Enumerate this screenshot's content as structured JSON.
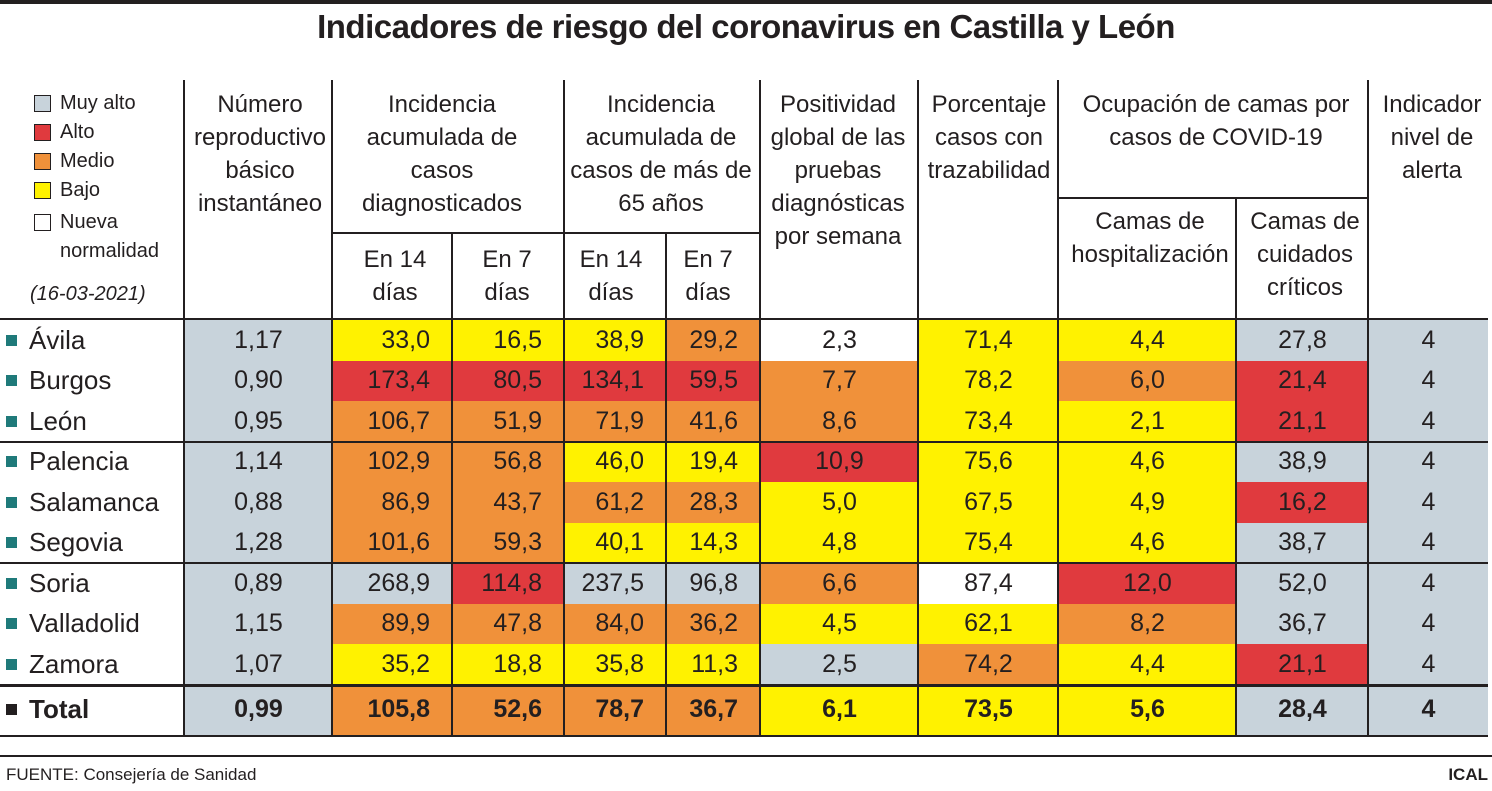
{
  "title": "Indicadores de riesgo del coronavirus en Castilla y León",
  "legend": {
    "items": [
      {
        "label": "Muy alto",
        "color": "#c8d3db"
      },
      {
        "label": "Alto",
        "color": "#e03a3e"
      },
      {
        "label": "Medio",
        "color": "#f0913a"
      },
      {
        "label": "Bajo",
        "color": "#fff200"
      },
      {
        "label": "Nueva normalidad",
        "color": "#ffffff"
      }
    ],
    "date": "(16-03-2021)"
  },
  "headers": {
    "r": "Número reproductivo básico instantáneo",
    "ia": "Incidencia acumulada de casos diagnosticados",
    "ia65": "Incidencia acumulada de casos de más de 65 años",
    "pos": "Positividad global de las pruebas diagnósticas por semana",
    "traz": "Porcentaje casos con trazabilidad",
    "camas": "Ocupación de camas por casos de COVID-19",
    "hosp": "Camas de hospitalización",
    "uci": "Camas de cuidados críticos",
    "alerta": "Indicador nivel de alerta",
    "d14": "En 14 días",
    "d7": "En 7 días"
  },
  "chart_data": {
    "type": "table",
    "title": "Indicadores de riesgo del coronavirus en Castilla y León",
    "date": "(16-03-2021)",
    "columns": [
      "Número reproductivo básico instantáneo",
      "Incidencia acumulada de casos diagnosticados En 14 días",
      "Incidencia acumulada de casos diagnosticados En 7 días",
      "Incidencia acumulada de casos de más de 65 años En 14 días",
      "Incidencia acumulada de casos de más de 65 años En 7 días",
      "Positividad global de las pruebas diagnósticas por semana",
      "Porcentaje casos con trazabilidad",
      "Camas de hospitalización",
      "Camas de cuidados críticos",
      "Indicador nivel de alerta"
    ],
    "level_colors": {
      "M": "#c8d3db",
      "A": "#e03a3e",
      "D": "#f0913a",
      "B": "#fff200",
      "N": "#ffffff"
    },
    "rows": [
      {
        "name": "Ávila",
        "values": [
          "1,17",
          "33,0",
          "16,5",
          "38,9",
          "29,2",
          "2,3",
          "71,4",
          "4,4",
          "27,8",
          "4"
        ],
        "levels": [
          "M",
          "B",
          "B",
          "B",
          "D",
          "N",
          "B",
          "B",
          "M",
          "M"
        ]
      },
      {
        "name": "Burgos",
        "values": [
          "0,90",
          "173,4",
          "80,5",
          "134,1",
          "59,5",
          "7,7",
          "78,2",
          "6,0",
          "21,4",
          "4"
        ],
        "levels": [
          "M",
          "A",
          "A",
          "A",
          "A",
          "D",
          "B",
          "D",
          "A",
          "M"
        ]
      },
      {
        "name": "León",
        "values": [
          "0,95",
          "106,7",
          "51,9",
          "71,9",
          "41,6",
          "8,6",
          "73,4",
          "2,1",
          "21,1",
          "4"
        ],
        "levels": [
          "M",
          "D",
          "D",
          "D",
          "D",
          "D",
          "B",
          "B",
          "A",
          "M"
        ]
      },
      {
        "name": "Palencia",
        "values": [
          "1,14",
          "102,9",
          "56,8",
          "46,0",
          "19,4",
          "10,9",
          "75,6",
          "4,6",
          "38,9",
          "4"
        ],
        "levels": [
          "M",
          "D",
          "D",
          "B",
          "B",
          "A",
          "B",
          "B",
          "M",
          "M"
        ]
      },
      {
        "name": "Salamanca",
        "values": [
          "0,88",
          "86,9",
          "43,7",
          "61,2",
          "28,3",
          "5,0",
          "67,5",
          "4,9",
          "16,2",
          "4"
        ],
        "levels": [
          "M",
          "D",
          "D",
          "D",
          "D",
          "B",
          "B",
          "B",
          "A",
          "M"
        ]
      },
      {
        "name": "Segovia",
        "values": [
          "1,28",
          "101,6",
          "59,3",
          "40,1",
          "14,3",
          "4,8",
          "75,4",
          "4,6",
          "38,7",
          "4"
        ],
        "levels": [
          "M",
          "D",
          "D",
          "B",
          "B",
          "B",
          "B",
          "B",
          "M",
          "M"
        ]
      },
      {
        "name": "Soria",
        "values": [
          "0,89",
          "268,9",
          "114,8",
          "237,5",
          "96,8",
          "6,6",
          "87,4",
          "12,0",
          "52,0",
          "4"
        ],
        "levels": [
          "M",
          "M",
          "A",
          "M",
          "M",
          "D",
          "N",
          "A",
          "M",
          "M"
        ]
      },
      {
        "name": "Valladolid",
        "values": [
          "1,15",
          "89,9",
          "47,8",
          "84,0",
          "36,2",
          "4,5",
          "62,1",
          "8,2",
          "36,7",
          "4"
        ],
        "levels": [
          "M",
          "D",
          "D",
          "D",
          "D",
          "B",
          "B",
          "D",
          "M",
          "M"
        ]
      },
      {
        "name": "Zamora",
        "values": [
          "1,07",
          "35,2",
          "18,8",
          "35,8",
          "11,3",
          "2,5",
          "74,2",
          "4,4",
          "21,1",
          "4"
        ],
        "levels": [
          "M",
          "B",
          "B",
          "B",
          "B",
          "M",
          "D",
          "B",
          "A",
          "M"
        ]
      },
      {
        "name": "Total",
        "values": [
          "0,99",
          "105,8",
          "52,6",
          "78,7",
          "36,7",
          "6,1",
          "73,5",
          "5,6",
          "28,4",
          "4"
        ],
        "levels": [
          "M",
          "D",
          "D",
          "D",
          "D",
          "B",
          "B",
          "B",
          "M",
          "M"
        ],
        "bold": true
      }
    ]
  },
  "footer": {
    "source": "FUENTE: Consejería de Sanidad",
    "credit": "ICAL"
  }
}
